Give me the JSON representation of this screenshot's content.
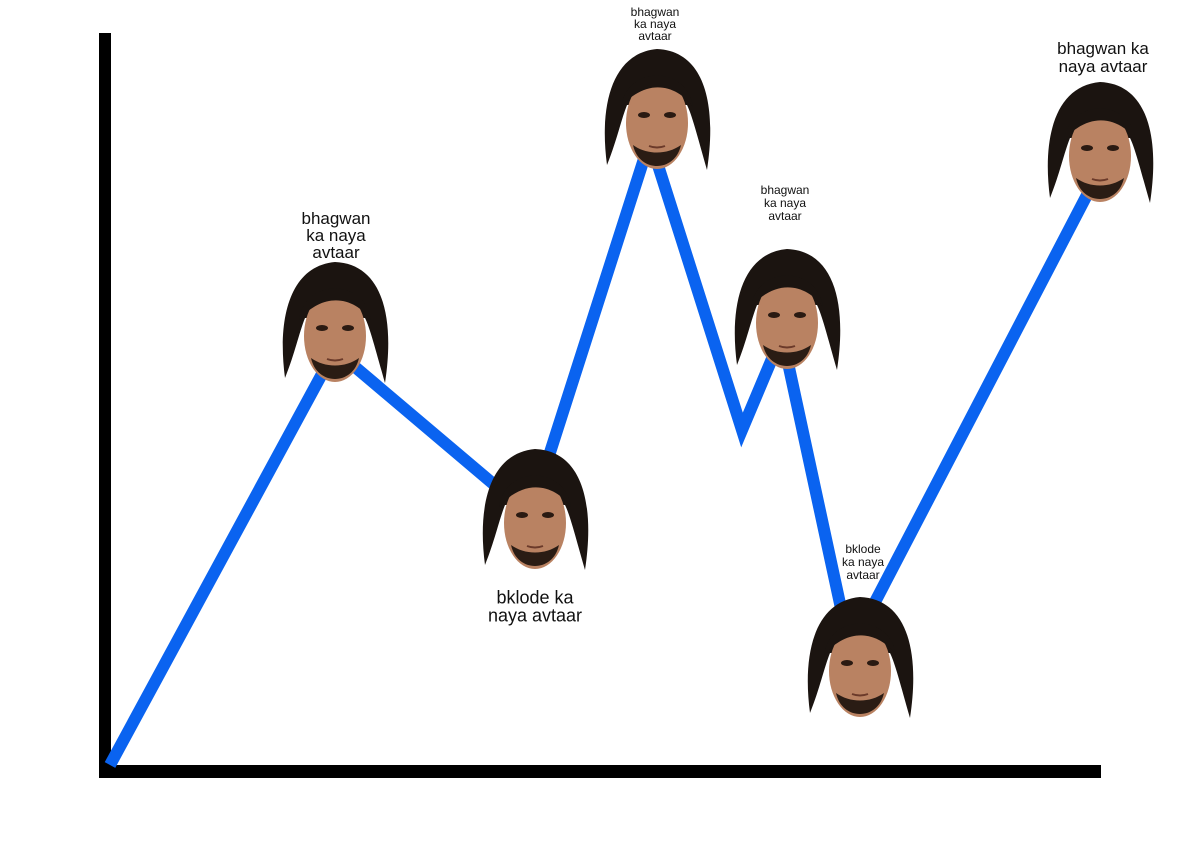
{
  "annotations": [
    {
      "lines": [
        "bhagwan",
        "ka naya",
        "avtaar"
      ]
    },
    {
      "lines": [
        "bklode ka",
        "naya avtaar"
      ]
    },
    {
      "lines": [
        "bhagwan",
        "ka naya",
        "avtaar"
      ]
    },
    {
      "lines": [
        "bhagwan",
        "ka naya",
        "avtaar"
      ]
    },
    {
      "lines": [
        "bklode",
        "ka naya",
        "avtaar"
      ]
    },
    {
      "lines": [
        "bhagwan ka",
        "naya avtaar"
      ]
    }
  ]
}
